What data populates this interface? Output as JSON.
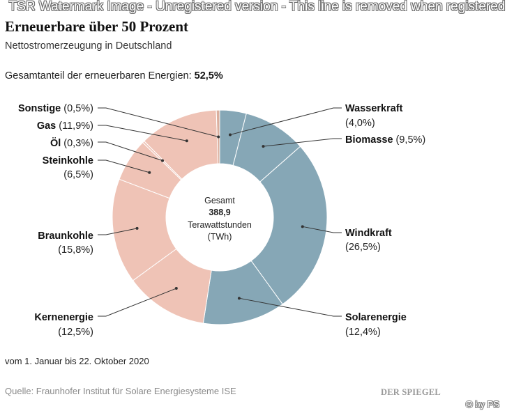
{
  "watermark": "TSR Watermark Image - Unregistered version - This line is removed when registered",
  "header": {
    "title": "Erneuerbare über 50 Prozent",
    "subtitle": "Nettostromerzeugung in Deutschland",
    "share_label": "Gesamtanteil der erneuerbaren Energien:",
    "share_value": "52,5%"
  },
  "chart_data": {
    "type": "pie",
    "title": "Erneuerbare über 50 Prozent",
    "subtitle": "Nettostromerzeugung in Deutschland",
    "donut": true,
    "center": {
      "line1": "Gesamt",
      "line2": "388,9",
      "line3": "Terawattstunden",
      "line4": "(TWh)"
    },
    "total": 388.9,
    "slices": [
      {
        "name": "Wasserkraft",
        "value": 4.0,
        "label": "(4,0%)",
        "group": "renewable"
      },
      {
        "name": "Biomasse",
        "value": 9.5,
        "label": "(9,5%)",
        "group": "renewable"
      },
      {
        "name": "Windkraft",
        "value": 26.5,
        "label": "(26,5%)",
        "group": "renewable"
      },
      {
        "name": "Solarenergie",
        "value": 12.4,
        "label": "(12,4%)",
        "group": "renewable"
      },
      {
        "name": "Kernenergie",
        "value": 12.5,
        "label": "(12,5%)",
        "group": "conventional"
      },
      {
        "name": "Braunkohle",
        "value": 15.8,
        "label": "(15,8%)",
        "group": "conventional"
      },
      {
        "name": "Steinkohle",
        "value": 6.5,
        "label": "(6,5%)",
        "group": "conventional"
      },
      {
        "name": "Öl",
        "value": 0.3,
        "label": "(0,3%)",
        "group": "conventional"
      },
      {
        "name": "Gas",
        "value": 11.9,
        "label": "(11,9%)",
        "group": "conventional"
      },
      {
        "name": "Sonstige",
        "value": 0.5,
        "label": "(0,5%)",
        "group": "conventional"
      }
    ],
    "colors": {
      "renewable": "#86a7b6",
      "conventional": "#efc3b6",
      "other": "#dbaf9e",
      "separator": "#ffffff",
      "leader": "#333333"
    }
  },
  "footer": {
    "period": "vom 1. Januar bis 22. Oktober 2020",
    "source": "Quelle: Fraunhofer Institut für Solare Energiesysteme ISE",
    "logo": "DER SPIEGEL",
    "copyright": "© by PS"
  }
}
